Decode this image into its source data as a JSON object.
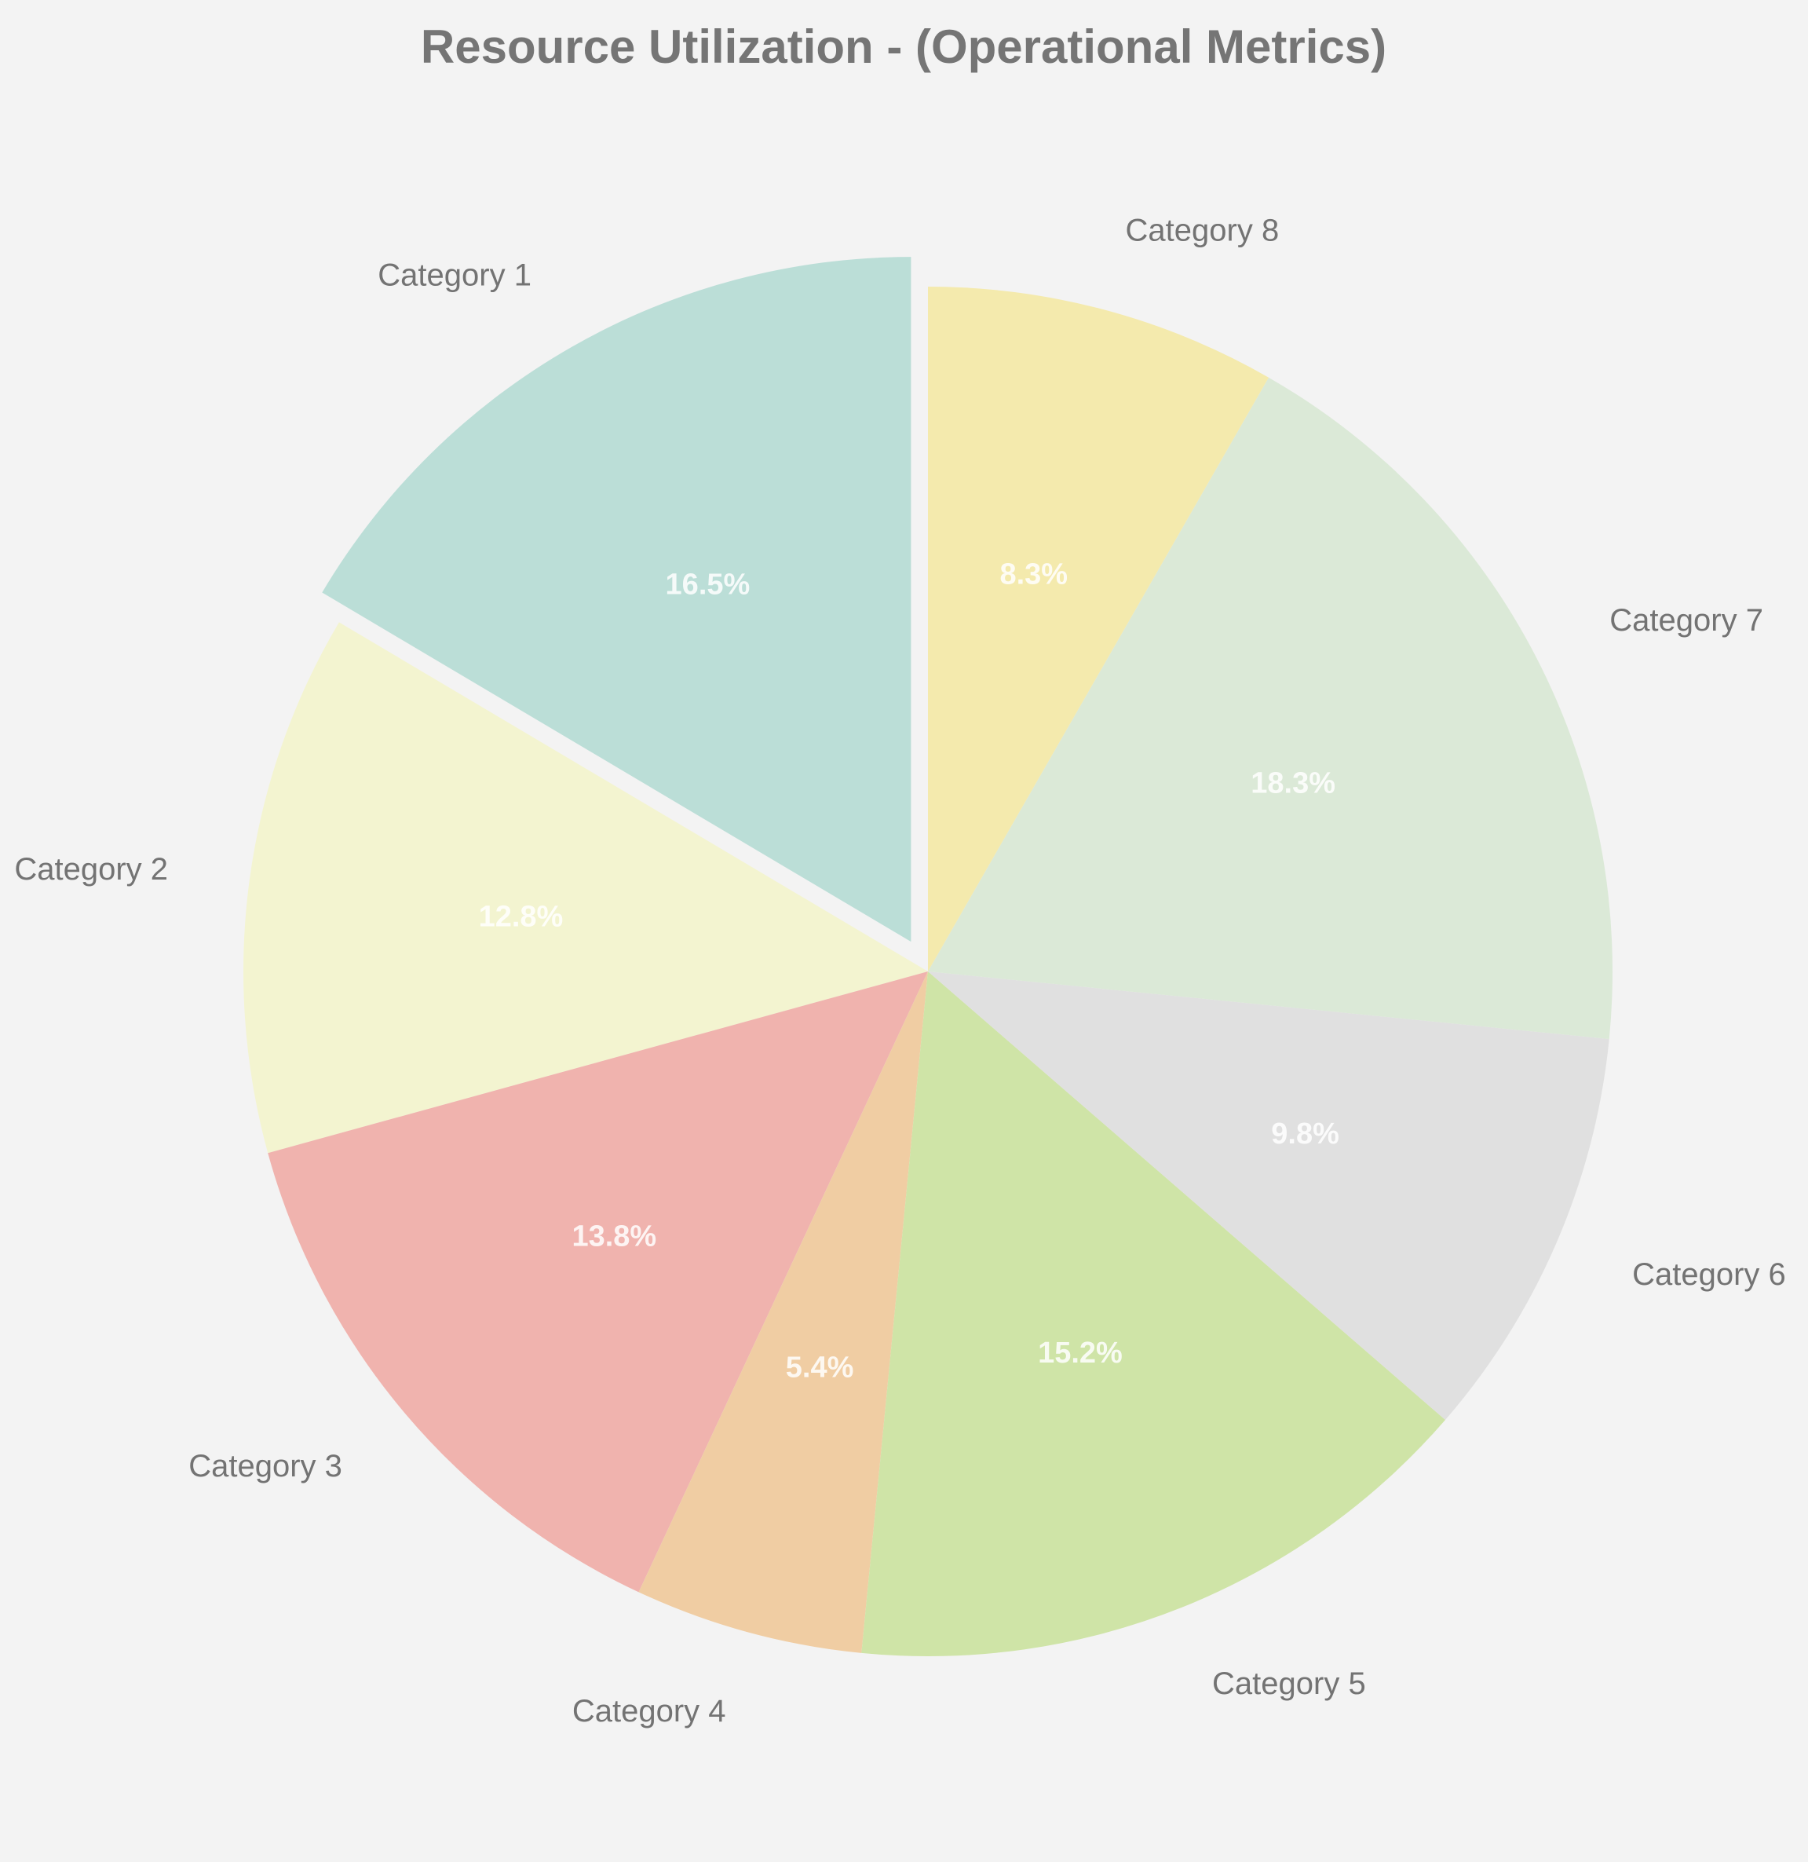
{
  "chart_data": {
    "type": "pie",
    "title": "Resource Utilization - (Operational Metrics)",
    "start_angle_deg": 90,
    "direction": "counterclockwise",
    "slices": [
      {
        "label": "Category 1",
        "value": 16.5,
        "pct_label": "16.5%",
        "color": "#bbded7",
        "exploded": true
      },
      {
        "label": "Category 2",
        "value": 12.8,
        "pct_label": "12.8%",
        "color": "#f3f4d0",
        "exploded": false
      },
      {
        "label": "Category 3",
        "value": 13.8,
        "pct_label": "13.8%",
        "color": "#f0b3ae",
        "exploded": false
      },
      {
        "label": "Category 4",
        "value": 5.4,
        "pct_label": "5.4%",
        "color": "#f0cda3",
        "exploded": false
      },
      {
        "label": "Category 5",
        "value": 15.2,
        "pct_label": "15.2%",
        "color": "#cfe4a7",
        "exploded": false
      },
      {
        "label": "Category 6",
        "value": 9.8,
        "pct_label": "9.8%",
        "color": "#e0e0e0",
        "exploded": false
      },
      {
        "label": "Category 7",
        "value": 18.3,
        "pct_label": "18.3%",
        "color": "#dbe9d7",
        "exploded": false
      },
      {
        "label": "Category 8",
        "value": 8.3,
        "pct_label": "8.3%",
        "color": "#f4eaad",
        "exploded": false
      }
    ],
    "colors": {
      "background": "#f3f3f3",
      "title": "#757575",
      "label": "#737373",
      "pct": "#ffffff"
    }
  }
}
